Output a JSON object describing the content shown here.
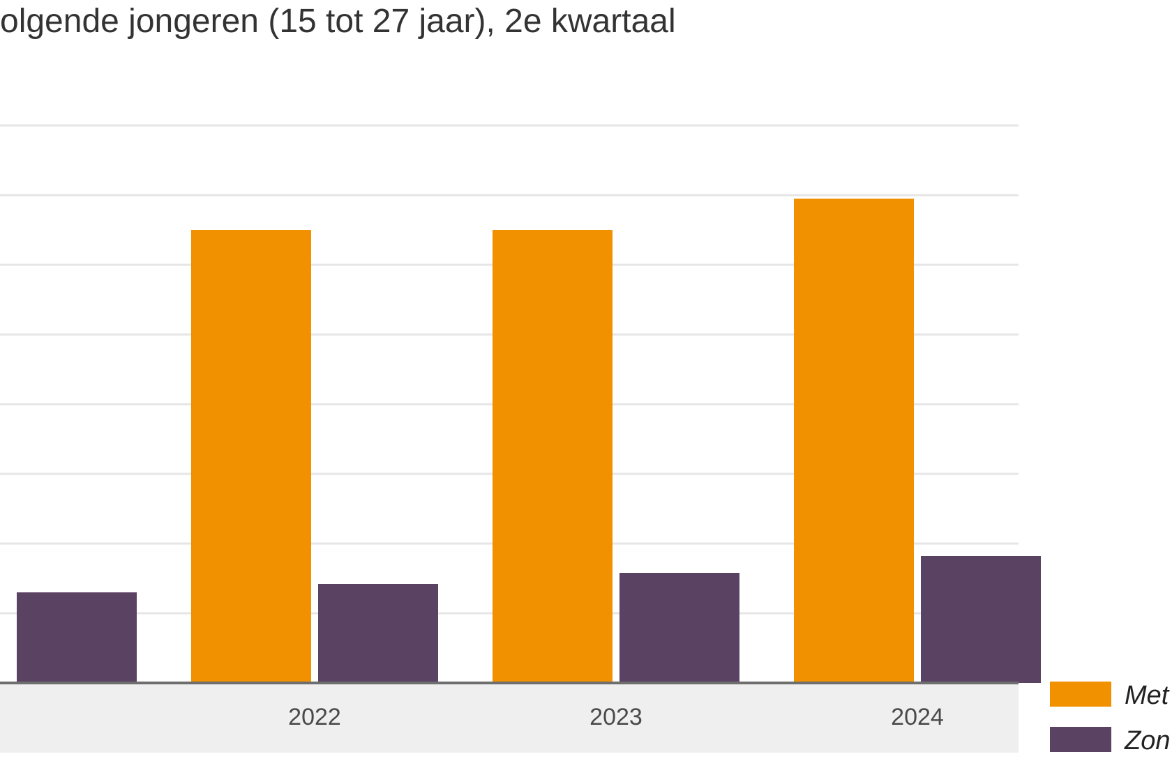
{
  "chart_data": {
    "type": "bar",
    "title": "olgende jongeren (15 tot 27 jaar), 2e kwartaal",
    "categories": [
      "",
      "2022",
      "2023",
      "2024"
    ],
    "series": [
      {
        "name": "Met",
        "color": "#f29100",
        "values": [
          null,
          65,
          65,
          69.5
        ]
      },
      {
        "name": "Zon",
        "color": "#5a4263",
        "values": [
          13,
          14.2,
          15.8,
          18.2
        ]
      }
    ],
    "ylim": [
      0,
      80
    ],
    "grid": true,
    "legend": "right"
  }
}
